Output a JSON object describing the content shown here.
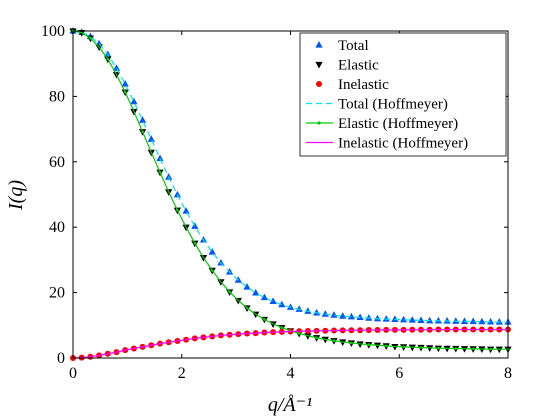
{
  "chart_data": {
    "type": "scatter",
    "title": "",
    "xlabel": "q/Å⁻¹",
    "ylabel": "I(q)",
    "xlim": [
      0,
      8
    ],
    "ylim": [
      0,
      100
    ],
    "xticks": [
      0,
      2,
      4,
      6,
      8
    ],
    "yticks": [
      0,
      20,
      40,
      60,
      80,
      100
    ],
    "grid": false,
    "legend_position": "top-right",
    "x": [
      0.0,
      0.16,
      0.32,
      0.48,
      0.64,
      0.8,
      0.96,
      1.12,
      1.28,
      1.44,
      1.6,
      1.76,
      1.92,
      2.08,
      2.24,
      2.4,
      2.56,
      2.72,
      2.88,
      3.04,
      3.2,
      3.36,
      3.52,
      3.68,
      3.84,
      4.0,
      4.16,
      4.32,
      4.48,
      4.64,
      4.8,
      4.96,
      5.12,
      5.28,
      5.44,
      5.6,
      5.76,
      5.92,
      6.08,
      6.24,
      6.4,
      6.56,
      6.72,
      6.88,
      7.04,
      7.2,
      7.36,
      7.52,
      7.68,
      7.84,
      8.0
    ],
    "series": [
      {
        "name": "Total",
        "kind": "marker",
        "marker": "triangle-up",
        "color": "#0055ff",
        "values": [
          100.0,
          99.6,
          98.3,
          96.1,
          92.8,
          88.6,
          83.8,
          78.4,
          72.7,
          66.9,
          61.0,
          55.3,
          49.9,
          44.9,
          40.3,
          36.1,
          32.4,
          29.1,
          26.3,
          23.8,
          21.7,
          19.9,
          18.5,
          17.3,
          16.3,
          15.5,
          14.9,
          14.3,
          13.8,
          13.4,
          13.1,
          12.8,
          12.6,
          12.4,
          12.2,
          12.0,
          11.9,
          11.8,
          11.7,
          11.6,
          11.5,
          11.4,
          11.35,
          11.3,
          11.25,
          11.2,
          11.15,
          11.1,
          11.05,
          11.0,
          11.0
        ]
      },
      {
        "name": "Elastic",
        "kind": "marker",
        "marker": "triangle-down",
        "color": "#000000",
        "values": [
          100.0,
          99.5,
          97.8,
          95.1,
          91.4,
          86.7,
          81.3,
          75.4,
          69.2,
          62.9,
          56.8,
          50.8,
          45.2,
          40.0,
          35.1,
          30.7,
          26.8,
          23.3,
          20.2,
          17.6,
          15.3,
          13.4,
          11.8,
          10.4,
          9.3,
          8.3,
          7.5,
          6.8,
          6.2,
          5.7,
          5.3,
          4.9,
          4.6,
          4.3,
          4.1,
          3.9,
          3.7,
          3.5,
          3.4,
          3.3,
          3.2,
          3.1,
          3.0,
          2.95,
          2.9,
          2.85,
          2.8,
          2.75,
          2.7,
          2.7,
          2.7
        ]
      },
      {
        "name": "Inelastic",
        "kind": "marker",
        "marker": "circle",
        "color": "#ff0000",
        "values": [
          0.0,
          0.1,
          0.4,
          0.8,
          1.3,
          1.8,
          2.4,
          2.9,
          3.4,
          3.9,
          4.4,
          4.8,
          5.2,
          5.6,
          6.0,
          6.3,
          6.6,
          6.9,
          7.1,
          7.3,
          7.5,
          7.6,
          7.8,
          7.9,
          8.0,
          8.1,
          8.2,
          8.25,
          8.3,
          8.35,
          8.4,
          8.45,
          8.5,
          8.5,
          8.55,
          8.55,
          8.6,
          8.6,
          8.6,
          8.65,
          8.65,
          8.65,
          8.7,
          8.7,
          8.7,
          8.7,
          8.7,
          8.7,
          8.7,
          8.7,
          8.7
        ]
      },
      {
        "name": "Total (Hoffmeyer)",
        "kind": "line",
        "dash": "dashed",
        "color": "#00e5ee",
        "values": [
          100.0,
          99.6,
          98.3,
          96.1,
          92.8,
          88.6,
          83.8,
          78.4,
          72.7,
          66.9,
          61.0,
          55.3,
          49.9,
          44.9,
          40.3,
          36.1,
          32.4,
          29.1,
          26.3,
          23.8,
          21.7,
          19.9,
          18.5,
          17.3,
          16.3,
          15.5,
          14.9,
          14.3,
          13.8,
          13.4,
          13.1,
          12.8,
          12.6,
          12.4,
          12.2,
          12.0,
          11.9,
          11.8,
          11.7,
          11.6,
          11.5,
          11.4,
          11.35,
          11.3,
          11.25,
          11.2,
          11.15,
          11.1,
          11.05,
          11.0,
          11.0
        ]
      },
      {
        "name": "Elastic (Hoffmeyer)",
        "kind": "line",
        "dash": "solid-dotted",
        "color": "#00cc00",
        "values": [
          100.0,
          99.5,
          97.8,
          95.1,
          91.4,
          86.7,
          81.3,
          75.4,
          69.2,
          62.9,
          56.8,
          50.8,
          45.2,
          40.0,
          35.1,
          30.7,
          26.8,
          23.3,
          20.2,
          17.6,
          15.3,
          13.4,
          11.8,
          10.4,
          9.3,
          8.3,
          7.5,
          6.8,
          6.2,
          5.7,
          5.3,
          4.9,
          4.6,
          4.3,
          4.1,
          3.9,
          3.7,
          3.5,
          3.4,
          3.3,
          3.2,
          3.1,
          3.0,
          2.95,
          2.9,
          2.85,
          2.8,
          2.75,
          2.7,
          2.7,
          2.7
        ]
      },
      {
        "name": "Inelastic (Hoffmeyer)",
        "kind": "line",
        "dash": "solid",
        "color": "#ff00ff",
        "values": [
          0.0,
          0.1,
          0.4,
          0.8,
          1.3,
          1.8,
          2.4,
          2.9,
          3.4,
          3.9,
          4.4,
          4.8,
          5.2,
          5.6,
          6.0,
          6.3,
          6.6,
          6.9,
          7.1,
          7.3,
          7.5,
          7.6,
          7.8,
          7.9,
          8.0,
          8.1,
          8.2,
          8.25,
          8.3,
          8.35,
          8.4,
          8.45,
          8.5,
          8.5,
          8.55,
          8.55,
          8.6,
          8.6,
          8.6,
          8.65,
          8.65,
          8.65,
          8.7,
          8.7,
          8.7,
          8.7,
          8.7,
          8.7,
          8.7,
          8.7,
          8.7
        ]
      }
    ]
  }
}
